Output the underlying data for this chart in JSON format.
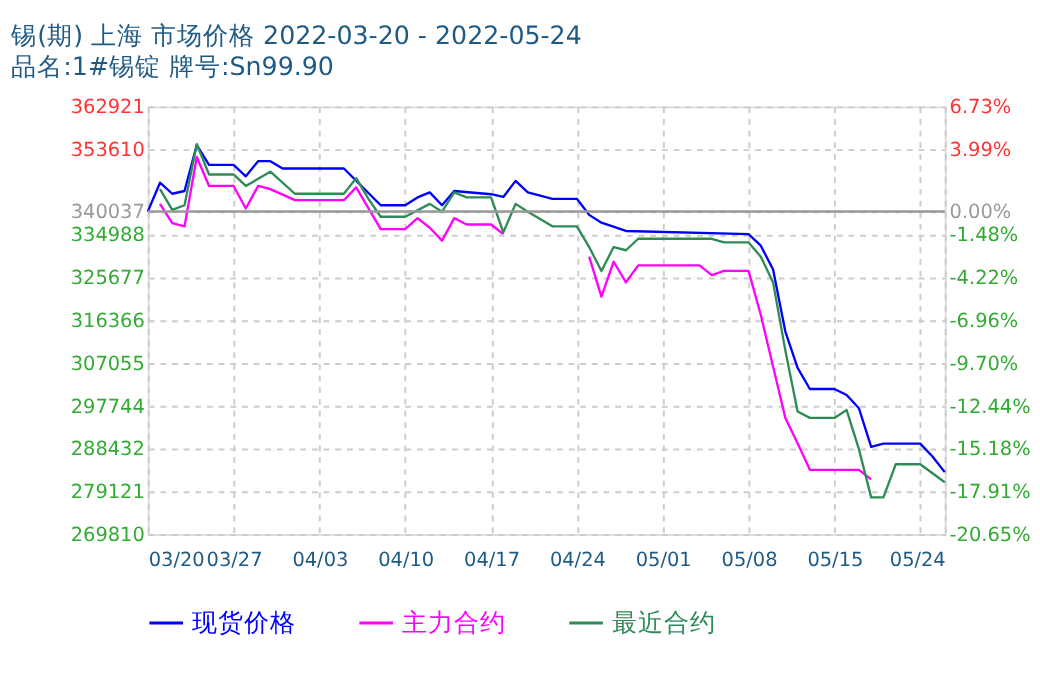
{
  "chart_data": {
    "type": "line",
    "title": "锡(期) 上海 市场价格 2022-03-20 - 2022-05-24",
    "subtitle": "品名:1#锡锭 牌号:Sn99.90",
    "series": [
      {
        "name": "现货价格",
        "color": "#0000ff",
        "x": [
          "2022-03-20",
          "2022-03-21",
          "2022-03-22",
          "2022-03-23",
          "2022-03-24",
          "2022-03-25",
          "2022-03-27",
          "2022-03-28",
          "2022-03-29",
          "2022-03-30",
          "2022-03-31",
          "2022-04-05",
          "2022-04-08",
          "2022-04-10",
          "2022-04-11",
          "2022-04-12",
          "2022-04-13",
          "2022-04-14",
          "2022-04-17",
          "2022-04-18",
          "2022-04-19",
          "2022-04-20",
          "2022-04-22",
          "2022-04-24",
          "2022-04-25",
          "2022-04-26",
          "2022-04-28",
          "2022-05-08",
          "2022-05-09",
          "2022-05-10",
          "2022-05-11",
          "2022-05-12",
          "2022-05-13",
          "2022-05-15",
          "2022-05-16",
          "2022-05-17",
          "2022-05-18",
          "2022-05-19",
          "2022-05-22",
          "2022-05-23",
          "2022-05-24"
        ],
        "values": [
          340000,
          346300,
          343900,
          344500,
          354500,
          350200,
          350200,
          347700,
          351000,
          351000,
          349400,
          349400,
          341400,
          341400,
          343100,
          344200,
          341400,
          344500,
          343800,
          343200,
          346700,
          344200,
          342800,
          342800,
          339300,
          337600,
          335800,
          335100,
          332600,
          327400,
          313900,
          306000,
          301400,
          301400,
          300100,
          297200,
          288800,
          289500,
          289500,
          286700,
          283300
        ]
      },
      {
        "name": "主力合约",
        "color": "#ff00ff",
        "x": [
          "2022-03-21",
          "2022-03-22",
          "2022-03-23",
          "2022-03-24",
          "2022-03-25",
          "2022-03-27",
          "2022-03-28",
          "2022-03-29",
          "2022-03-30",
          "2022-04-01",
          "2022-04-05",
          "2022-04-06",
          "2022-04-08",
          "2022-04-10",
          "2022-04-11",
          "2022-04-12",
          "2022-04-13",
          "2022-04-14",
          "2022-04-15",
          "2022-04-17",
          "2022-04-18",
          "2022-04-24",
          "2022-04-25",
          "2022-04-26",
          "2022-04-27",
          "2022-04-28",
          "2022-04-29",
          "2022-05-04",
          "2022-05-05",
          "2022-05-06",
          "2022-05-08",
          "2022-05-09",
          "2022-05-10",
          "2022-05-11",
          "2022-05-12",
          "2022-05-13",
          "2022-05-17",
          "2022-05-18"
        ],
        "values": [
          341700,
          337500,
          336800,
          351900,
          345600,
          345600,
          340700,
          345600,
          344900,
          342500,
          342500,
          345300,
          336200,
          336200,
          338600,
          336500,
          333700,
          338600,
          337200,
          337200,
          335100,
          null,
          330200,
          321500,
          329100,
          324600,
          328300,
          328300,
          326200,
          327100,
          327100,
          317500,
          306300,
          295100,
          289600,
          283800,
          283800,
          281700
        ]
      },
      {
        "name": "最近合约",
        "color": "#2e8b57",
        "x": [
          "2022-03-21",
          "2022-03-22",
          "2022-03-23",
          "2022-03-24",
          "2022-03-25",
          "2022-03-27",
          "2022-03-28",
          "2022-03-30",
          "2022-04-01",
          "2022-04-05",
          "2022-04-06",
          "2022-04-07",
          "2022-04-08",
          "2022-04-10",
          "2022-04-12",
          "2022-04-13",
          "2022-04-14",
          "2022-04-15",
          "2022-04-17",
          "2022-04-18",
          "2022-04-19",
          "2022-04-20",
          "2022-04-22",
          "2022-04-24",
          "2022-04-25",
          "2022-04-26",
          "2022-04-27",
          "2022-04-28",
          "2022-04-29",
          "2022-05-05",
          "2022-05-06",
          "2022-05-08",
          "2022-05-09",
          "2022-05-10",
          "2022-05-11",
          "2022-05-12",
          "2022-05-13",
          "2022-05-15",
          "2022-05-16",
          "2022-05-17",
          "2022-05-18",
          "2022-05-19",
          "2022-05-20",
          "2022-05-22",
          "2022-05-24"
        ],
        "values": [
          344900,
          340400,
          341400,
          354700,
          348100,
          348100,
          345600,
          348700,
          343900,
          343900,
          347300,
          342800,
          338900,
          338900,
          341700,
          340000,
          344200,
          343100,
          343100,
          335500,
          341700,
          340000,
          336800,
          336800,
          332300,
          327100,
          332300,
          331600,
          334100,
          334100,
          333300,
          333300,
          330200,
          324600,
          309800,
          296500,
          295100,
          295100,
          296800,
          288300,
          277800,
          277800,
          285000,
          285000,
          281100
        ]
      }
    ],
    "xlim": [
      "2022-03-20",
      "2022-05-24"
    ],
    "xticks": [
      {
        "value": "2022-03-20",
        "label": "03/20"
      },
      {
        "value": "2022-03-27",
        "label": "03/27"
      },
      {
        "value": "2022-04-03",
        "label": "04/03"
      },
      {
        "value": "2022-04-10",
        "label": "04/10"
      },
      {
        "value": "2022-04-17",
        "label": "04/17"
      },
      {
        "value": "2022-04-24",
        "label": "04/24"
      },
      {
        "value": "2022-05-01",
        "label": "05/01"
      },
      {
        "value": "2022-05-08",
        "label": "05/08"
      },
      {
        "value": "2022-05-15",
        "label": "05/15"
      },
      {
        "value": "2022-05-22",
        "label": null
      },
      {
        "value": "2022-05-24",
        "label": "05/24"
      }
    ],
    "ylim": [
      269810,
      362921
    ],
    "yticks": [
      269810,
      279121,
      288432,
      297744,
      307055,
      316366,
      325677,
      334988,
      340037,
      353610,
      362921
    ],
    "y2lim": [
      -20.65,
      6.73
    ],
    "y2ticks": [
      {
        "value": -20.65,
        "label": "-20.65%"
      },
      {
        "value": -17.91,
        "label": "-17.91%"
      },
      {
        "value": -15.18,
        "label": "-15.18%"
      },
      {
        "value": -12.44,
        "label": "-12.44%"
      },
      {
        "value": -9.7,
        "label": "-9.70%"
      },
      {
        "value": -6.96,
        "label": "-6.96%"
      },
      {
        "value": -4.22,
        "label": "-4.22%"
      },
      {
        "value": -1.48,
        "label": "-1.48%"
      },
      {
        "value": 0,
        "label": "0.00%"
      },
      {
        "value": 3.99,
        "label": "3.99%"
      },
      {
        "value": 6.73,
        "label": "6.73%"
      }
    ],
    "ref_lines": [
      {
        "axis": "y2",
        "value": 0,
        "color": "#999999",
        "line_style": "solid"
      }
    ],
    "grid": true,
    "legend": "bottom",
    "marker": "none",
    "line_style": "solid"
  }
}
